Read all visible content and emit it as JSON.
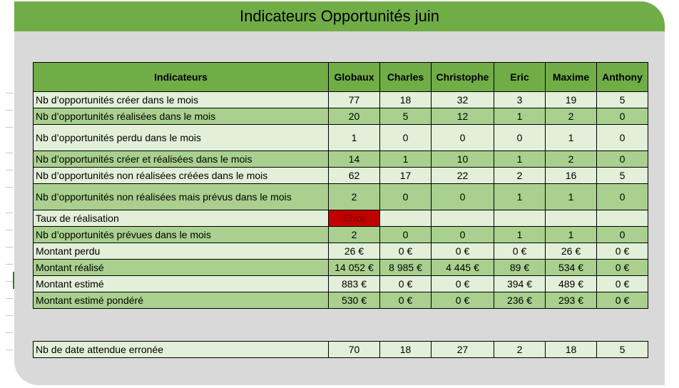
{
  "title": "Indicateurs Opportunités juin",
  "headers": [
    "Indicateurs",
    "Globaux",
    "Charles",
    "Christophe",
    "Eric",
    "Maxime",
    "Anthony"
  ],
  "rows": [
    {
      "label": "Nb d’opportunités créer dans le mois",
      "values": [
        "77",
        "18",
        "32",
        "3",
        "19",
        "5"
      ]
    },
    {
      "label": "Nb d’opportunités réalisées dans le mois",
      "values": [
        "20",
        "5",
        "12",
        "1",
        "2",
        "0"
      ]
    },
    {
      "label": "Nb d’opportunités perdu dans le mois",
      "values": [
        "1",
        "0",
        "0",
        "0",
        "1",
        "0"
      ]
    },
    {
      "label": "Nb d’opportunités créer et réalisées dans le mois",
      "values": [
        "14",
        "1",
        "10",
        "1",
        "2",
        "0"
      ]
    },
    {
      "label": "Nb d’opportunités non réalisées créées dans le mois",
      "values": [
        "62",
        "17",
        "22",
        "2",
        "16",
        "5"
      ]
    },
    {
      "label": "Nb d’opportunités non réalisées mais prévus dans le mois",
      "values": [
        "2",
        "0",
        "0",
        "1",
        "1",
        "0"
      ]
    },
    {
      "label": "Taux de réalisation",
      "values": [
        "Error",
        "",
        "",
        "",
        "",
        ""
      ]
    },
    {
      "label": "Nb d’opportunités prévues dans le mois",
      "values": [
        "2",
        "0",
        "0",
        "1",
        "1",
        "0"
      ]
    },
    {
      "label": "Montant perdu",
      "values": [
        "26 €",
        "0 €",
        "0 €",
        "0 €",
        "26 €",
        "0 €"
      ]
    },
    {
      "label": "Montant réalisé",
      "values": [
        "14 052 €",
        "8 985 €",
        "4 445 €",
        "89 €",
        "534 €",
        "0 €"
      ]
    },
    {
      "label": "Montant estimé",
      "values": [
        "883 €",
        "0 €",
        "0 €",
        "394 €",
        "489 €",
        "0 €"
      ]
    },
    {
      "label": "Montant estimé pondéré",
      "values": [
        "530 €",
        "0 €",
        "0 €",
        "236 €",
        "293 €",
        "0 €"
      ]
    }
  ],
  "footer_row": {
    "label": "Nb de date attendue erronée",
    "values": [
      "70",
      "18",
      "27",
      "2",
      "18",
      "5"
    ]
  },
  "colors": {
    "header": "#70ad47",
    "light": "#e2efd9",
    "dark": "#a9d08e",
    "error": "#c00000"
  }
}
